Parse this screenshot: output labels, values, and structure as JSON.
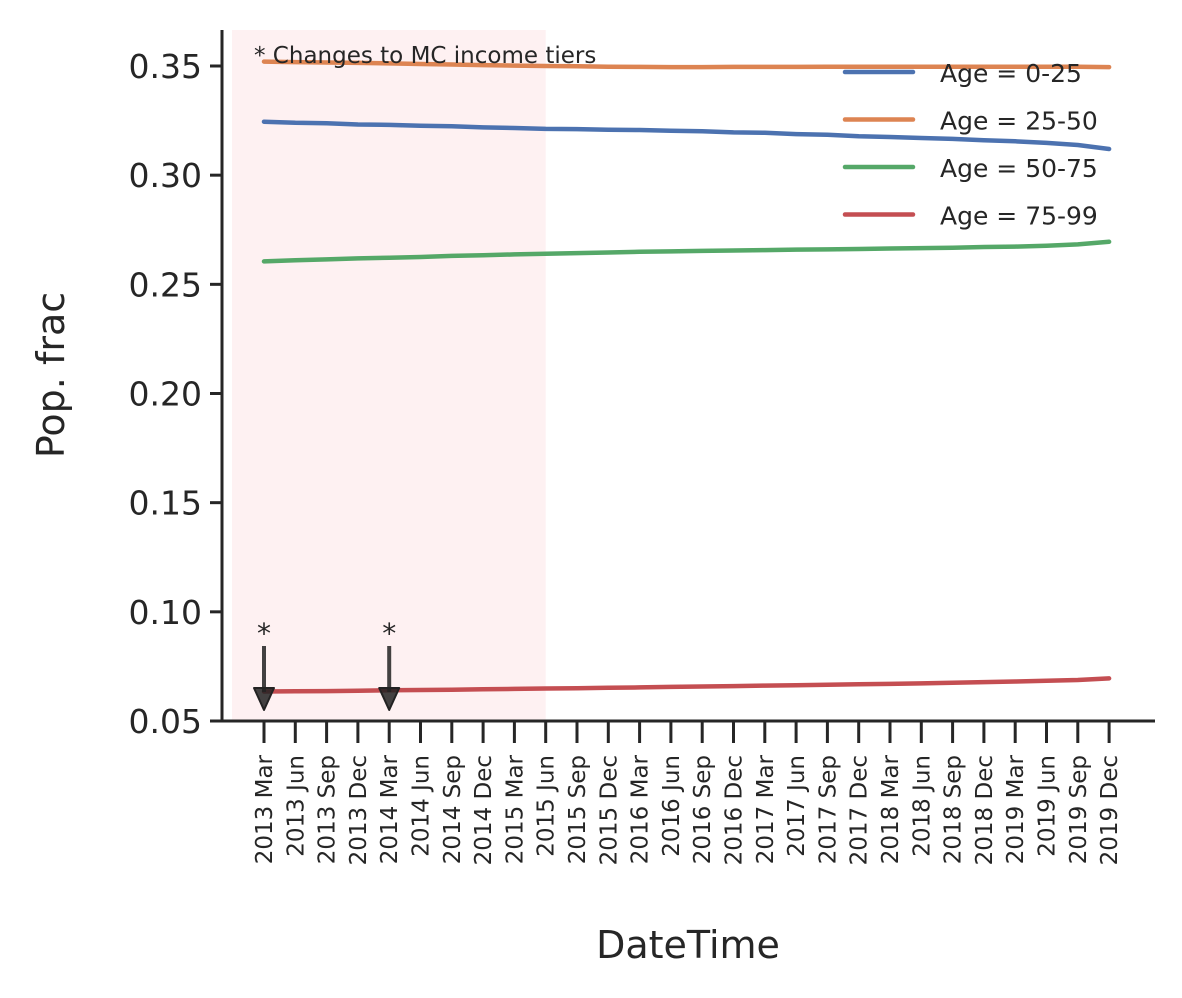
{
  "chart_data": {
    "type": "line",
    "xlabel": "DateTime",
    "ylabel": "Pop. frac",
    "ylim": [
      0.05,
      0.366
    ],
    "yticks": [
      "0.05",
      "0.10",
      "0.15",
      "0.20",
      "0.25",
      "0.30",
      "0.35"
    ],
    "x": [
      "2013 Mar",
      "2013 Jun",
      "2013 Sep",
      "2013 Dec",
      "2014 Mar",
      "2014 Jun",
      "2014 Sep",
      "2014 Dec",
      "2015 Mar",
      "2015 Jun",
      "2015 Sep",
      "2015 Dec",
      "2016 Mar",
      "2016 Jun",
      "2016 Sep",
      "2016 Dec",
      "2017 Mar",
      "2017 Jun",
      "2017 Sep",
      "2017 Dec",
      "2018 Mar",
      "2018 Jun",
      "2018 Sep",
      "2018 Dec",
      "2019 Mar",
      "2019 Jun",
      "2019 Sep",
      "2019 Dec"
    ],
    "series": [
      {
        "name": "Age = 0-25",
        "color": "#4c72b0",
        "values": [
          0.3245,
          0.324,
          0.3238,
          0.3232,
          0.323,
          0.3226,
          0.3224,
          0.3219,
          0.3216,
          0.3212,
          0.3211,
          0.3208,
          0.3207,
          0.3203,
          0.3201,
          0.3196,
          0.3194,
          0.3188,
          0.3185,
          0.3178,
          0.3175,
          0.317,
          0.3166,
          0.316,
          0.3155,
          0.3148,
          0.3138,
          0.312
        ]
      },
      {
        "name": "Age = 25-50",
        "color": "#dd8452",
        "values": [
          0.352,
          0.3518,
          0.3516,
          0.3514,
          0.3512,
          0.3509,
          0.3507,
          0.3504,
          0.3502,
          0.35,
          0.3499,
          0.3497,
          0.3496,
          0.3495,
          0.3495,
          0.3496,
          0.3496,
          0.3496,
          0.3497,
          0.3497,
          0.3497,
          0.3497,
          0.3497,
          0.3497,
          0.3497,
          0.3497,
          0.3497,
          0.3495
        ]
      },
      {
        "name": "Age = 50-75",
        "color": "#55a868",
        "values": [
          0.2605,
          0.261,
          0.2614,
          0.2619,
          0.2622,
          0.2625,
          0.263,
          0.2633,
          0.2637,
          0.264,
          0.2643,
          0.2646,
          0.2649,
          0.2651,
          0.2653,
          0.2655,
          0.2657,
          0.2659,
          0.266,
          0.2662,
          0.2664,
          0.2666,
          0.2668,
          0.2671,
          0.2673,
          0.2677,
          0.2683,
          0.2695
        ]
      },
      {
        "name": "Age = 75-99",
        "color": "#c44e52",
        "values": [
          0.0635,
          0.0636,
          0.0637,
          0.0639,
          0.0641,
          0.0642,
          0.0643,
          0.0645,
          0.0647,
          0.0649,
          0.065,
          0.0652,
          0.0654,
          0.0656,
          0.0658,
          0.066,
          0.0662,
          0.0664,
          0.0666,
          0.0668,
          0.067,
          0.0672,
          0.0675,
          0.0678,
          0.0681,
          0.0684,
          0.0688,
          0.0695
        ]
      }
    ],
    "shaded_region": {
      "from": "2013 Mar",
      "to": "2015 Jun",
      "color": "#fde8ea"
    },
    "annotations": {
      "note": "* Changes to MC income tiers",
      "marker_symbol": "*",
      "markers": [
        "2013 Mar",
        "2014 Mar"
      ]
    },
    "legend_position": "top-right",
    "grid": false
  }
}
